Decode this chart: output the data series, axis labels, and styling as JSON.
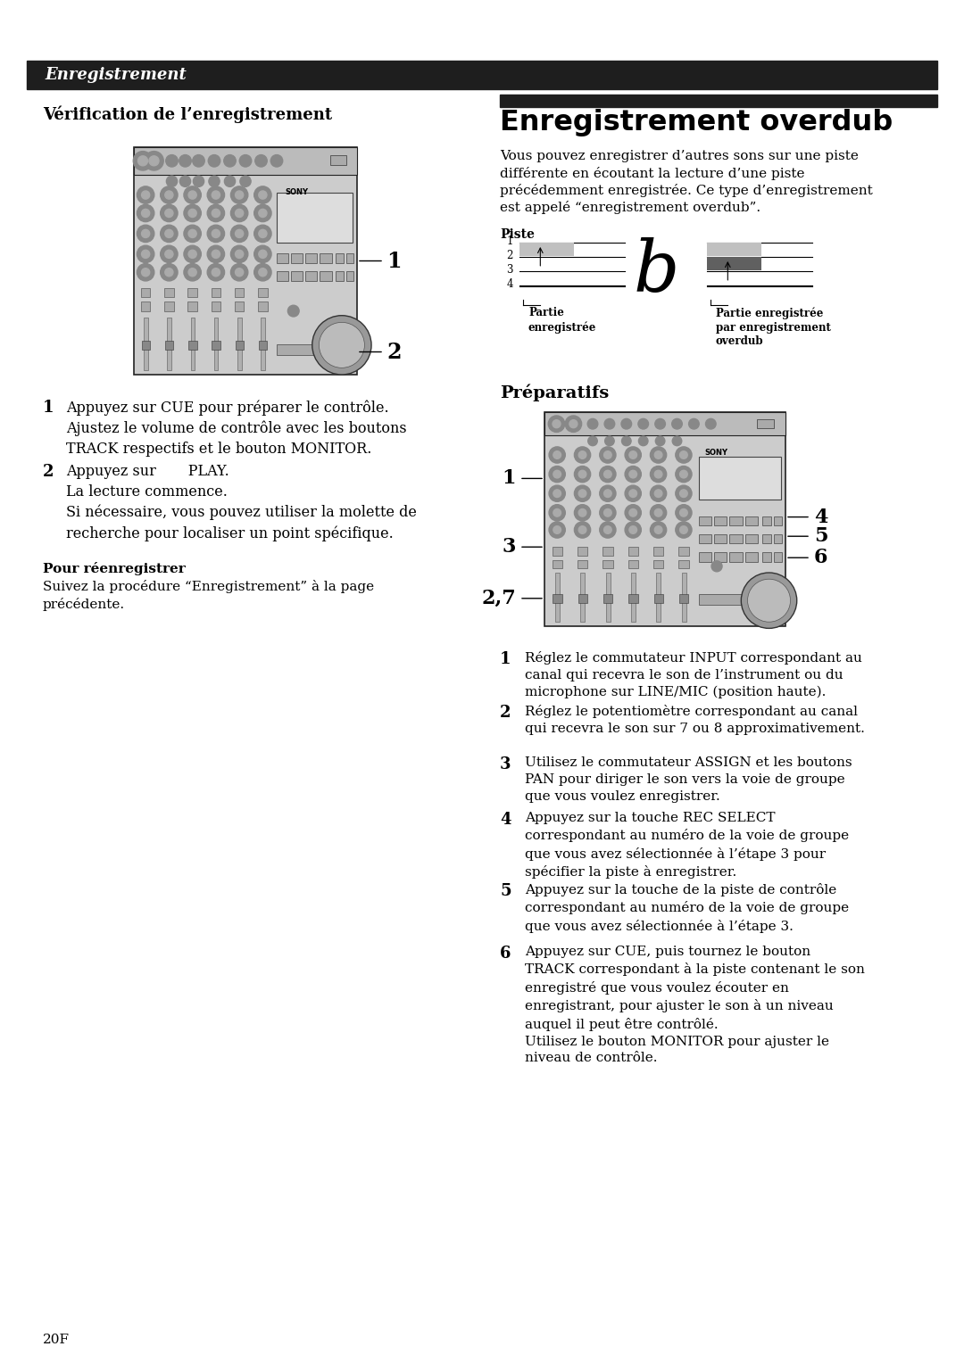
{
  "page_bg": "#ffffff",
  "header_bg": "#1e1e1e",
  "header_text": "Enregistrement",
  "header_text_color": "#ffffff",
  "left_section_title": "Vérification de l’enregistrement",
  "left_step1_text": "Appuyez sur CUE pour préparer le contrôle.\nAjustez le volume de contrôle avec les boutons\nTRACK respectifs et le bouton MONITOR.",
  "left_step2_text": "Appuyez sur       PLAY.\nLa lecture commence.\nSi nécessaire, vous pouvez utiliser la molette de\nrecherche pour localiser un point spécifique.",
  "left_bold_heading": "Pour réenregistrer",
  "left_bold_text": "Suivez la procédure “Enregistrement” à la page\nprécédente.",
  "right_section_title": "Enregistrement overdub",
  "right_section_bar_color": "#1e1e1e",
  "right_intro_line1": "Vous pouvez enregistrer d’autres sons sur une piste",
  "right_intro_line2": "différente en écoutant la lecture d’une piste",
  "right_intro_line3": "précédemment enregistrée. Ce type d’enregistrement",
  "right_intro_line4": "est appelé “enregistrement overdub”.",
  "piste_label": "Piste",
  "piste_tracks": [
    "1",
    "2",
    "3",
    "4"
  ],
  "diagram_a_fill": "#c0c0c0",
  "diagram_b_dark_fill": "#606060",
  "diagram_b_light_fill": "#c0c0c0",
  "label_partie_enregistree": "Partie\nenregistrée",
  "label_partie_overdub": "Partie enregistrée\npar enregistrement\noverdub",
  "right_sub_title": "Préparatifs",
  "step1_r": "Réglez le commutateur INPUT correspondant au\ncanal qui recevra le son de l’instrument ou du\nmicrophone sur LINE/MIC (position haute).",
  "step2_r": "Réglez le potentiomètre correspondant au canal\nqui recevra le son sur 7 ou 8 approximativement.",
  "step3_r": "Utilisez le commutateur ASSIGN et les boutons\nPAN pour diriger le son vers la voie de groupe\nque vous voulez enregistrer.",
  "step4_r": "Appuyez sur la touche REC SELECT\ncorrespondant au numéro de la voie de groupe\nque vous avez sélectionnée à l’étape 3 pour\nspécifier la piste à enregistrer.",
  "step5_r": "Appuyez sur la touche de la piste de contrôle\ncorrespondant au numéro de la voie de groupe\nque vous avez sélectionnée à l’étape 3.",
  "step6_r": "Appuyez sur CUE, puis tournez le bouton\nTRACK correspondant à la piste contenant le son\nenregistré que vous voulez écouter en\nenregistrant, pour ajuster le son à un niveau\nauquel il peut être contrôlé.\nUtilisez le bouton MONITOR pour ajuster le\nniveau de contrôle.",
  "page_number": "20F"
}
